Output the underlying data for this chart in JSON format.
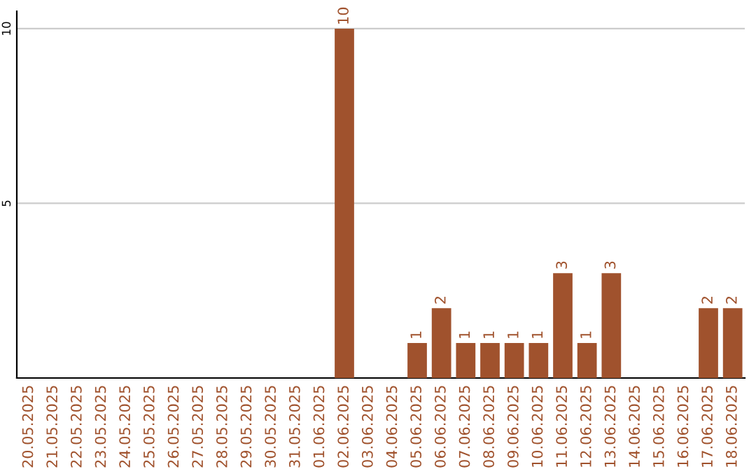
{
  "chart_data": {
    "type": "bar",
    "categories": [
      "20.05.2025",
      "21.05.2025",
      "22.05.2025",
      "23.05.2025",
      "24.05.2025",
      "25.05.2025",
      "26.05.2025",
      "27.05.2025",
      "28.05.2025",
      "29.05.2025",
      "30.05.2025",
      "31.05.2025",
      "01.06.2025",
      "02.06.2025",
      "03.06.2025",
      "04.06.2025",
      "05.06.2025",
      "06.06.2025",
      "07.06.2025",
      "08.06.2025",
      "09.06.2025",
      "10.06.2025",
      "11.06.2025",
      "12.06.2025",
      "13.06.2025",
      "14.06.2025",
      "15.06.2025",
      "16.06.2025",
      "17.06.2025",
      "18.06.2025"
    ],
    "values": [
      0,
      0,
      0,
      0,
      0,
      0,
      0,
      0,
      0,
      0,
      0,
      0,
      0,
      10,
      0,
      0,
      1,
      2,
      1,
      1,
      1,
      1,
      3,
      1,
      3,
      0,
      0,
      0,
      2,
      2
    ],
    "value_labels": [
      null,
      null,
      null,
      null,
      null,
      null,
      null,
      null,
      null,
      null,
      null,
      null,
      null,
      "10",
      null,
      null,
      "1",
      "2",
      "1",
      "1",
      "1",
      "1",
      "3",
      "1",
      "3",
      null,
      null,
      null,
      "2",
      "2"
    ],
    "color": "#a0522d",
    "ylim": [
      0,
      10.5
    ],
    "yticks": [
      5,
      10
    ],
    "grid": "y"
  }
}
